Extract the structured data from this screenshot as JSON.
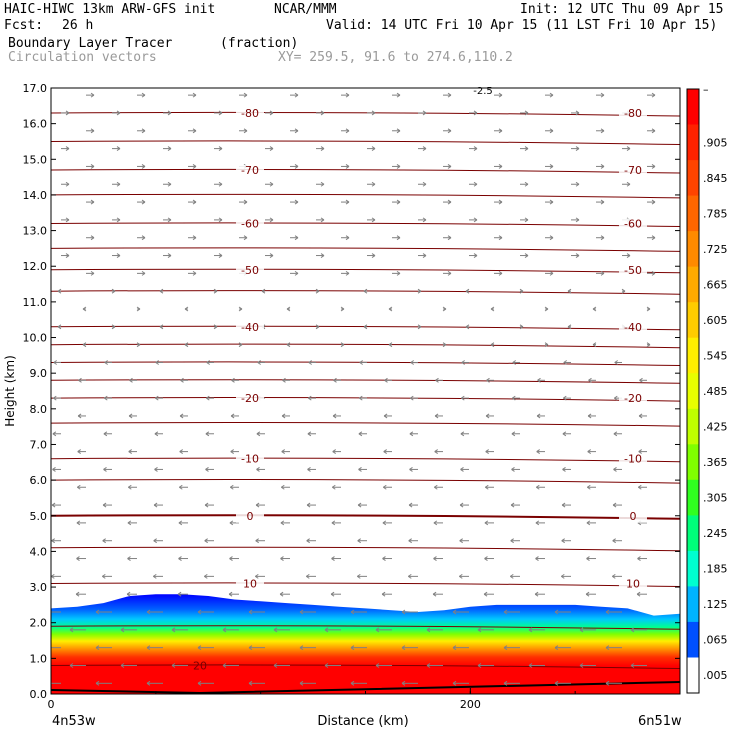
{
  "header": {
    "model": "HAIC-HIWC 13km ARW-GFS init",
    "org": "NCAR/MMM",
    "init": "Init: 12 UTC Thu 09 Apr 15",
    "fcst_label": "Fcst:",
    "fcst_value": "26 h",
    "valid": "Valid: 14 UTC Fri 10 Apr 15 (11 LST Fri 10 Apr 15)",
    "field_name": "Boundary Layer Tracer",
    "field_units": "(fraction)",
    "vector_name": "Circulation vectors",
    "xy": "XY= 259.5, 91.6 to 274.6,110.2"
  },
  "chart_data": {
    "type": "heatmap",
    "title": "Boundary Layer Tracer",
    "units": "(fraction)",
    "xlabel": "Distance (km)",
    "ylabel": "Height (km)",
    "x_ticks": [
      "0",
      "200"
    ],
    "x_range": [
      0,
      300
    ],
    "ylim": [
      0,
      17
    ],
    "y_ticks": [
      "0.0",
      "1.0",
      "2.0",
      "3.0",
      "4.0",
      "5.0",
      "6.0",
      "7.0",
      "8.0",
      "9.0",
      "10.0",
      "11.0",
      "12.0",
      "13.0",
      "14.0",
      "15.0",
      "16.0",
      "17.0"
    ],
    "x_endpoints": {
      "left": "4n53w",
      "right": "6n51w"
    },
    "colorbar_labels": [
      "–",
      ".905",
      ".845",
      ".785",
      ".725",
      ".665",
      ".605",
      ".545",
      ".485",
      ".425",
      ".365",
      ".305",
      ".245",
      ".185",
      ".125",
      ".065",
      ".005"
    ],
    "colorbar_colors": [
      "#ff0000",
      "#ff2200",
      "#ff4400",
      "#ff6600",
      "#ff8a00",
      "#ffaa00",
      "#ffcc00",
      "#ffee00",
      "#e8ff00",
      "#c0ff00",
      "#80ff00",
      "#30ff20",
      "#00ff7a",
      "#00ffd0",
      "#00b4ff",
      "#0050ff",
      "#ffffff"
    ],
    "tracer_top_km": [
      2.4,
      2.45,
      2.55,
      2.75,
      2.8,
      2.8,
      2.75,
      2.65,
      2.6,
      2.55,
      2.5,
      2.45,
      2.4,
      2.35,
      2.3,
      2.35,
      2.45,
      2.5,
      2.5,
      2.5,
      2.5,
      2.45,
      2.4,
      2.2,
      2.25
    ],
    "temperature_contours": [
      {
        "label": "-80",
        "height_km": 16.3
      },
      {
        "label": "-70",
        "height_km": 14.7
      },
      {
        "label": "-60",
        "height_km": 13.2
      },
      {
        "label": "-50",
        "height_km": 11.9
      },
      {
        "label": "-40",
        "height_km": 10.3
      },
      {
        "label": "-20",
        "height_km": 8.3
      },
      {
        "label": "-10",
        "height_km": 6.6
      },
      {
        "label": "0",
        "height_km": 5.0
      },
      {
        "label": "10",
        "height_km": 3.1
      }
    ],
    "unlabeled_contour_heights_km": [
      15.5,
      14.0,
      12.5,
      11.3,
      9.8,
      9.3,
      8.8,
      7.6,
      6.0,
      4.1,
      1.9,
      0.8
    ],
    "inner_contour_label": "20",
    "top_label": "-2.5"
  }
}
